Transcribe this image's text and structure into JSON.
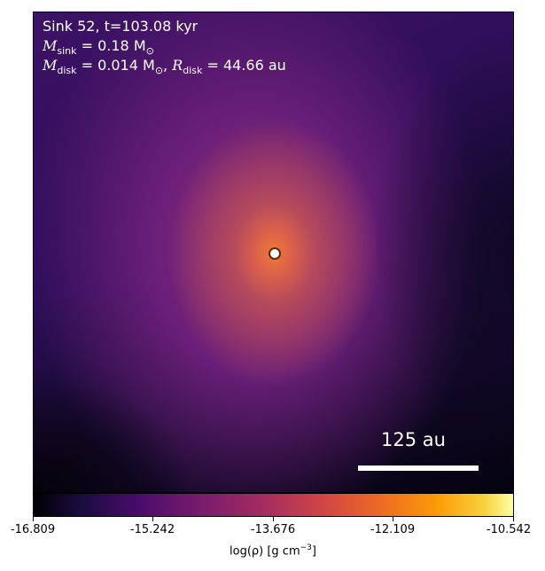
{
  "panel": {
    "line1": "Sink 52, t=103.08 kyr",
    "m_sink_symbol": "M",
    "m_sink_sub": "sink",
    "m_sink_value": " = 0.18 M",
    "m_sink_unit_sub": "⊙",
    "m_disk_symbol": "M",
    "m_disk_sub": "disk",
    "m_disk_value": " = 0.014 M",
    "m_disk_unit_sub": "⊙",
    "r_disk_sep": ", ",
    "r_disk_symbol": "R",
    "r_disk_sub": "disk",
    "r_disk_value": " = 44.66 au",
    "scale_bar_label": "125 au"
  },
  "colorbar": {
    "ticks": [
      "-16.809",
      "-15.242",
      "-13.676",
      "-12.109",
      "-10.542"
    ],
    "label_prefix": "log(ρ) [g cm",
    "label_exp": "−3",
    "label_suffix": "]",
    "colormap": "inferno"
  },
  "colors": {
    "text_on_map": "#ffffff",
    "sink_marker_fill": "#ffffff",
    "sink_marker_edge": "#5a2a00"
  }
}
